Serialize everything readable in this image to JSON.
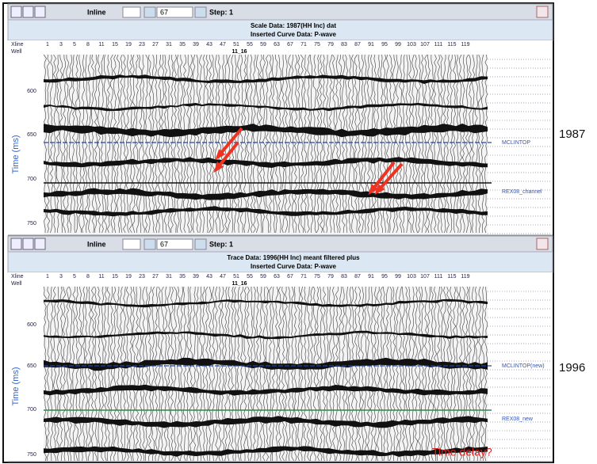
{
  "panels": [
    {
      "toolbar": {
        "mode": "Inline",
        "line": "67",
        "step": "Step: 1"
      },
      "header": [
        "Scale Data: 1987(HH Inc) dat",
        "Inserted Curve Data: P-wave"
      ],
      "row_labels": [
        "Xline",
        "Well"
      ],
      "traces": [
        "1",
        "3",
        "5",
        "8",
        "11",
        "15",
        "19",
        "23",
        "27",
        "31",
        "35",
        "39",
        "43",
        "47",
        "51",
        "55",
        "59",
        "63",
        "67",
        "71",
        "75",
        "79",
        "83",
        "87",
        "91",
        "95",
        "99",
        "103",
        "107",
        "111",
        "115",
        "119"
      ],
      "well": "11_16",
      "axis_title": "Time (ms)",
      "time_ticks": [
        "600",
        "650",
        "700",
        "750"
      ],
      "horizons": [
        "MCLINTOP",
        "REX08_channel"
      ],
      "year": "1987"
    },
    {
      "toolbar": {
        "mode": "Inline",
        "line": "67",
        "step": "Step: 1"
      },
      "header": [
        "Trace Data: 1996(HH Inc) meant filtered plus",
        "Inserted Curve Data: P-wave"
      ],
      "row_labels": [
        "Xline",
        "Well"
      ],
      "traces": [
        "1",
        "3",
        "5",
        "8",
        "11",
        "15",
        "19",
        "23",
        "27",
        "31",
        "35",
        "39",
        "43",
        "47",
        "51",
        "55",
        "59",
        "63",
        "67",
        "71",
        "75",
        "79",
        "83",
        "87",
        "91",
        "95",
        "99",
        "103",
        "107",
        "111",
        "115",
        "119"
      ],
      "well": "11_16",
      "axis_title": "Time (ms)",
      "time_ticks": [
        "600",
        "650",
        "700",
        "750"
      ],
      "horizons": [
        "MCLINTOP(new)",
        "REX08_new"
      ],
      "year": "1996",
      "annotation": "Time delay?"
    }
  ]
}
